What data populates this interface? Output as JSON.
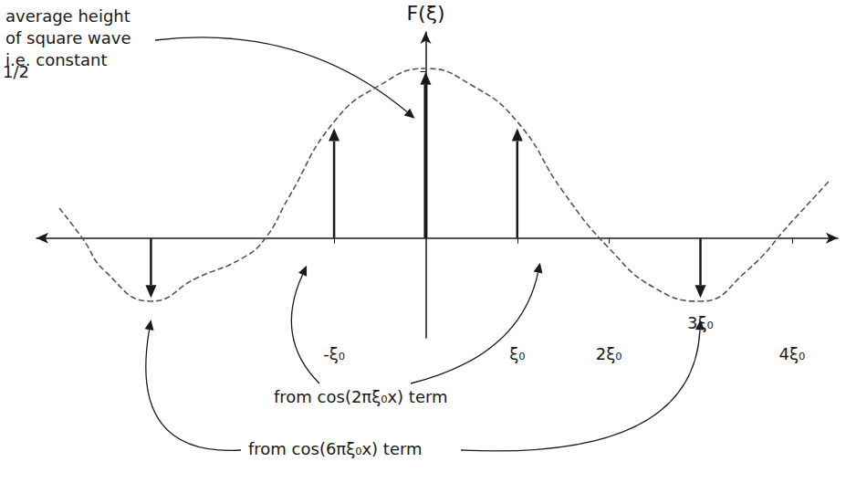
{
  "chart_data": {
    "type": "stem",
    "ylabel": "F(ξ)",
    "xlim": [
      -4.25,
      4.5
    ],
    "xticks": [
      {
        "value": -1,
        "label": "-ξ₀"
      },
      {
        "value": 1,
        "label": "ξ₀"
      },
      {
        "value": 2,
        "label": "2ξ₀"
      },
      {
        "value": 3,
        "label": "3ξ₀"
      },
      {
        "value": 4,
        "label": "4ξ₀"
      }
    ],
    "ylim": [
      -0.3,
      0.62
    ],
    "yticks": [
      {
        "value": 0.5,
        "label": "1/2"
      }
    ],
    "series": [
      {
        "type": "stem",
        "color": "#1a1a1a",
        "x": [
          -3,
          -1,
          0,
          1,
          3
        ],
        "values": [
          -0.18,
          0.33,
          0.5,
          0.33,
          -0.18
        ]
      },
      {
        "type": "line",
        "line_style": "dashed",
        "color": "#555555",
        "x": [
          -4.0,
          -3.75,
          -3.5,
          -3.0,
          -2.5,
          -2.0,
          -1.75,
          -1.5,
          -1.0,
          -0.5,
          0,
          0.5,
          1.0,
          1.5,
          2.0,
          2.5,
          3.0,
          3.5,
          4.0,
          4.4
        ],
        "values": [
          0.09,
          0.0,
          -0.1,
          -0.19,
          -0.12,
          -0.06,
          0.0,
          0.12,
          0.35,
          0.46,
          0.51,
          0.46,
          0.35,
          0.14,
          -0.03,
          -0.15,
          -0.19,
          -0.1,
          0.05,
          0.17
        ]
      }
    ],
    "annotations": [
      {
        "text": [
          "average height",
          "of square wave",
          "i.e. constant"
        ],
        "targets": [
          {
            "x": 0,
            "y": 0.36
          }
        ]
      },
      {
        "text": [
          "from cos(2πξ₀x) term"
        ],
        "targets": [
          {
            "x": -1,
            "y": 0
          },
          {
            "x": 1,
            "y": 0
          }
        ]
      },
      {
        "text": [
          "from cos(6πξ₀x) term"
        ],
        "targets": [
          {
            "x": -3,
            "y": -0.18
          },
          {
            "x": 3,
            "y": -0.18
          }
        ]
      }
    ]
  }
}
